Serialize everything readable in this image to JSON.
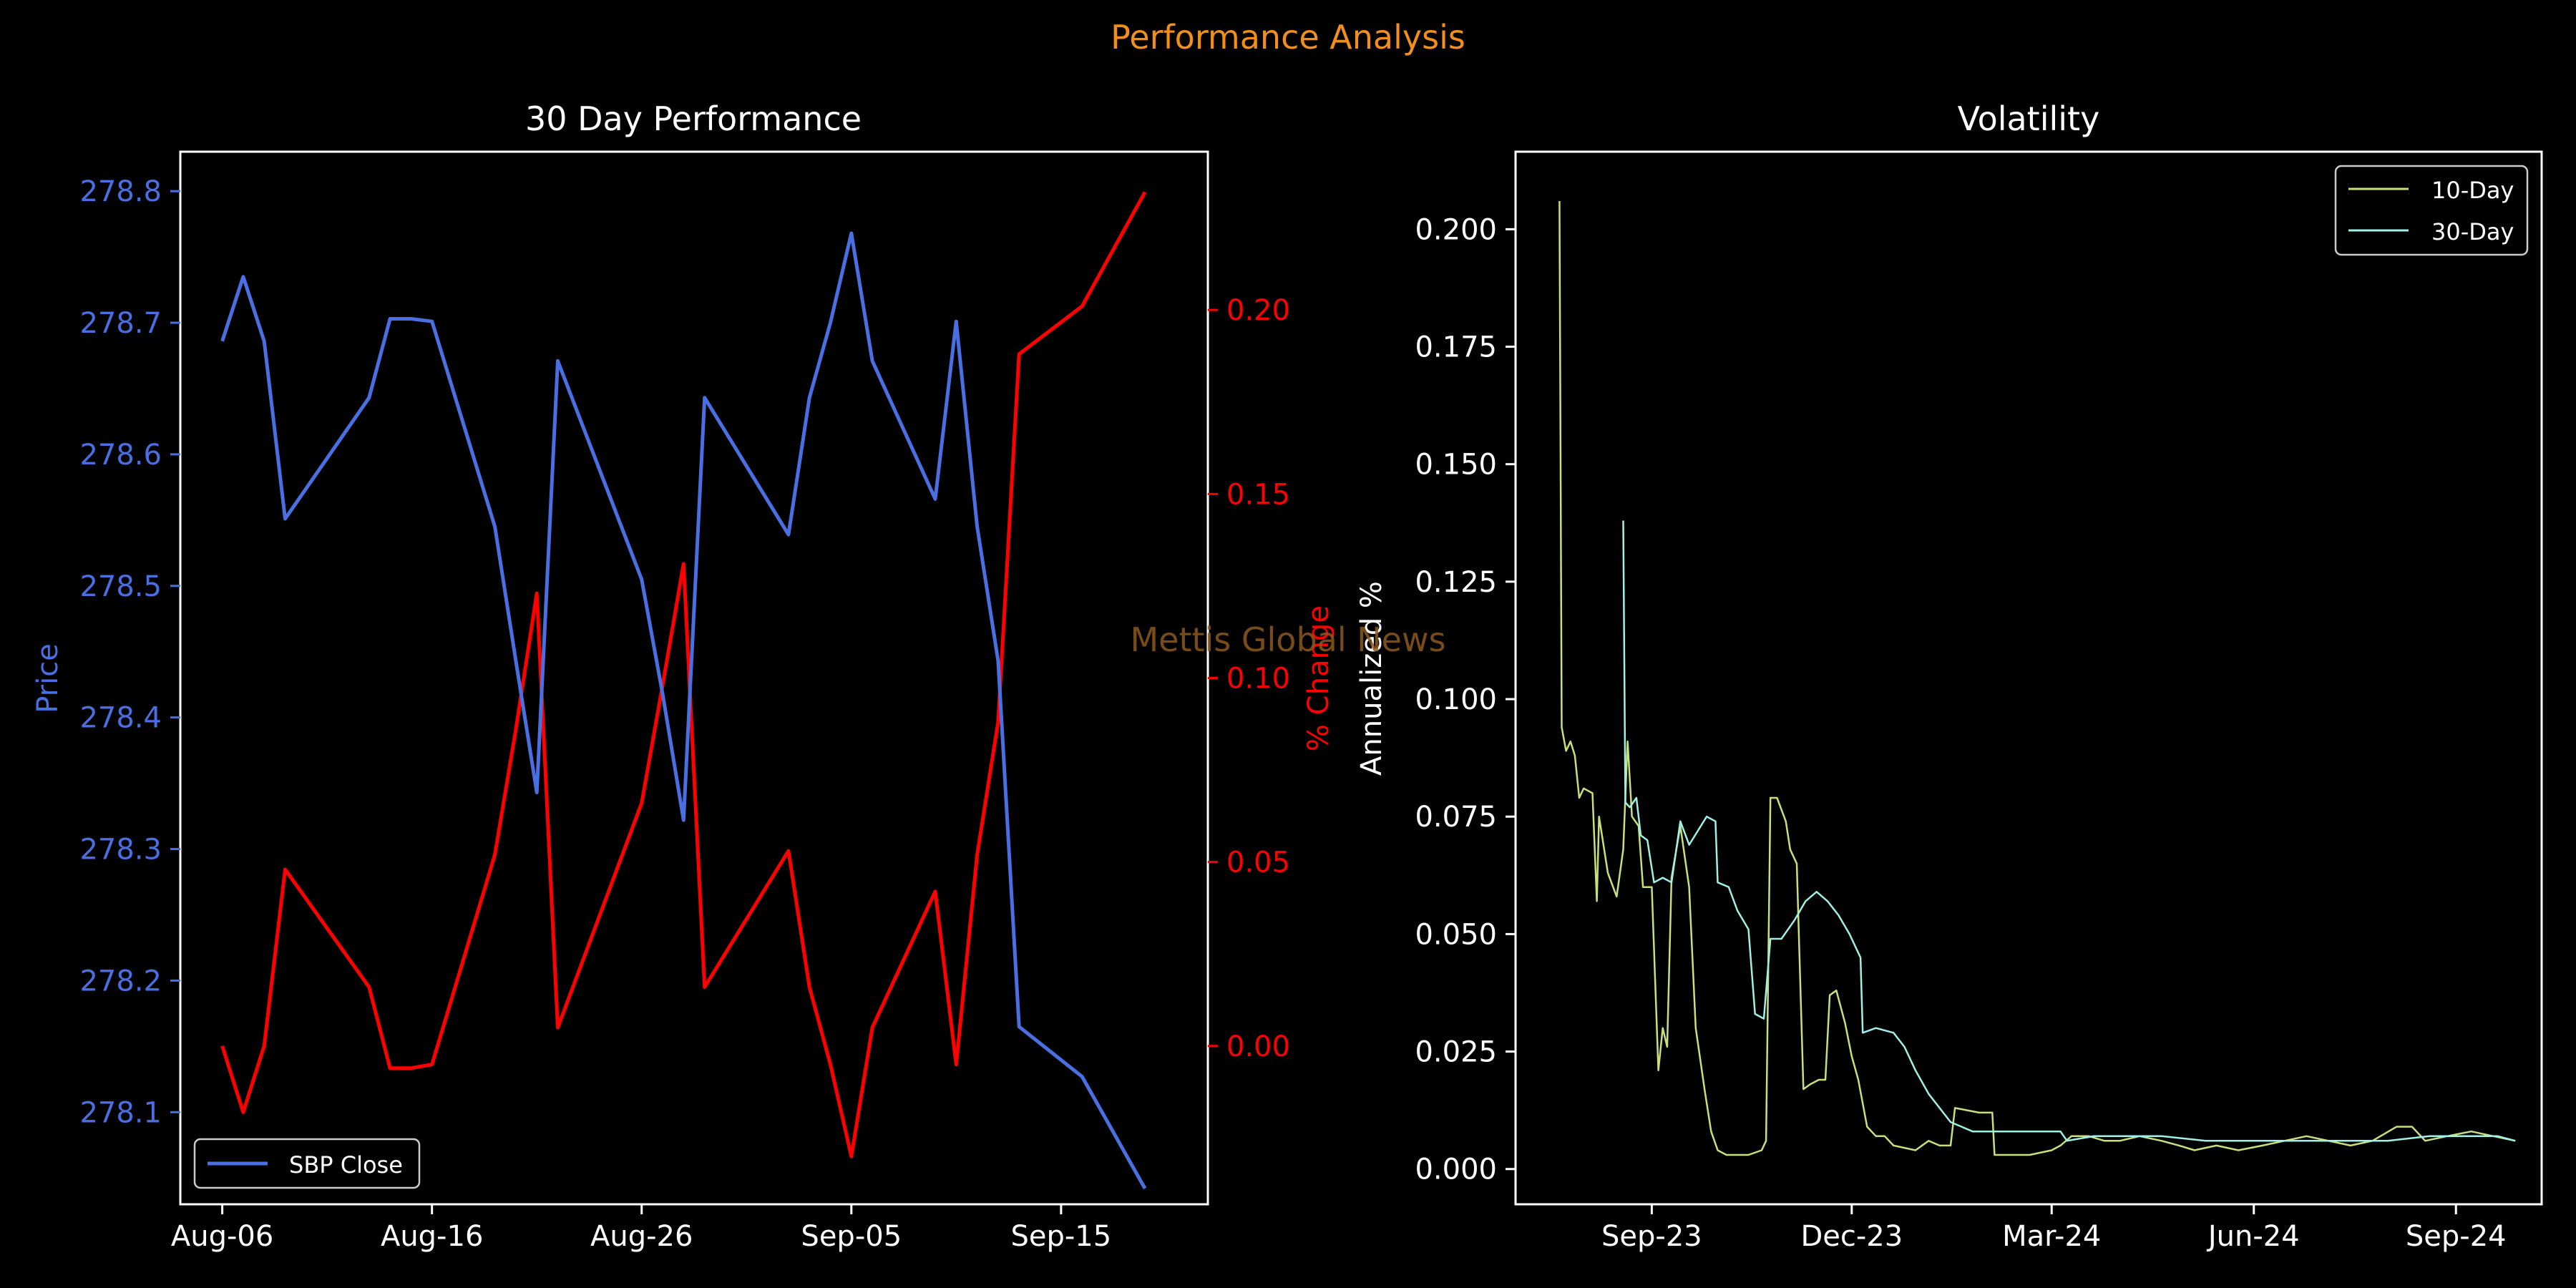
{
  "suptitle": "Performance Analysis",
  "watermark": "Mettis Global News",
  "colors": {
    "suptitle": "#f28e1c",
    "watermark": "#8c5a1e",
    "price": "#4a6fe3",
    "pct": "#ff0000",
    "vol10": "#c8e07a",
    "vol30": "#a0f0e6",
    "axes": "#ffffff",
    "background": "#000000"
  },
  "chart_data": [
    {
      "type": "line",
      "title": "30 Day Performance",
      "xlabel": "",
      "ylabel": "Price",
      "y2label": "% Change",
      "xlim": [
        "2024-08-04",
        "2024-09-22"
      ],
      "ylim": [
        278.03,
        278.83
      ],
      "y2lim": [
        -0.043,
        0.243
      ],
      "x_ticks": [
        "Aug-06",
        "Aug-16",
        "Aug-26",
        "Sep-05",
        "Sep-15"
      ],
      "x_tick_dates": [
        "2024-08-06",
        "2024-08-16",
        "2024-08-26",
        "2024-09-05",
        "2024-09-15"
      ],
      "y_ticks": [
        "278.1",
        "278.2",
        "278.3",
        "278.4",
        "278.5",
        "278.6",
        "278.7",
        "278.8"
      ],
      "y2_ticks": [
        "0.00",
        "0.05",
        "0.10",
        "0.15",
        "0.20"
      ],
      "legend": {
        "position": "lower-left",
        "entries": [
          "SBP Close"
        ]
      },
      "x": [
        "2024-08-06",
        "2024-08-07",
        "2024-08-08",
        "2024-08-09",
        "2024-08-13",
        "2024-08-14",
        "2024-08-15",
        "2024-08-16",
        "2024-08-19",
        "2024-08-20",
        "2024-08-21",
        "2024-08-22",
        "2024-08-26",
        "2024-08-27",
        "2024-08-28",
        "2024-08-29",
        "2024-09-02",
        "2024-09-03",
        "2024-09-04",
        "2024-09-05",
        "2024-09-06",
        "2024-09-09",
        "2024-09-10",
        "2024-09-11",
        "2024-09-12",
        "2024-09-13",
        "2024-09-16",
        "2024-09-19"
      ],
      "series": [
        {
          "name": "SBP Close",
          "axis": "left",
          "values": [
            278.686,
            278.735,
            278.686,
            278.551,
            278.643,
            278.703,
            278.703,
            278.701,
            278.545,
            278.443,
            278.343,
            278.671,
            278.505,
            278.418,
            278.322,
            278.643,
            278.539,
            278.643,
            278.7,
            278.768,
            278.671,
            278.566,
            278.701,
            278.545,
            278.443,
            278.165,
            278.127,
            278.042
          ]
        },
        {
          "axis": "right",
          "values": [
            0.0,
            -0.018,
            0.0,
            0.048,
            0.016,
            -0.006,
            -0.006,
            -0.005,
            0.052,
            0.086,
            0.123,
            0.005,
            0.066,
            0.098,
            0.131,
            0.016,
            0.053,
            0.016,
            -0.005,
            -0.03,
            0.005,
            0.042,
            -0.005,
            0.052,
            0.088,
            0.188,
            0.201,
            0.232
          ]
        }
      ]
    },
    {
      "type": "line",
      "title": "Volatility",
      "xlabel": "",
      "ylabel": "Annualized %",
      "xlim": [
        "2023-07-01",
        "2024-10-10"
      ],
      "ylim": [
        -0.0075,
        0.2165
      ],
      "x_ticks": [
        "Sep-23",
        "Dec-23",
        "Mar-24",
        "Jun-24",
        "Sep-24"
      ],
      "x_tick_dates": [
        "2023-09-01",
        "2023-12-01",
        "2024-03-01",
        "2024-06-01",
        "2024-09-01"
      ],
      "y_ticks": [
        "0.000",
        "0.025",
        "0.050",
        "0.075",
        "0.100",
        "0.125",
        "0.150",
        "0.175",
        "0.200"
      ],
      "legend": {
        "position": "top-right",
        "entries": [
          "10-Day",
          "30-Day"
        ]
      },
      "series": [
        {
          "name": "10-Day",
          "points": [
            [
              "2023-07-21",
              0.206
            ],
            [
              "2023-07-22",
              0.094
            ],
            [
              "2023-07-24",
              0.089
            ],
            [
              "2023-07-26",
              0.091
            ],
            [
              "2023-07-28",
              0.088
            ],
            [
              "2023-07-30",
              0.079
            ],
            [
              "2023-08-01",
              0.081
            ],
            [
              "2023-08-05",
              0.08
            ],
            [
              "2023-08-07",
              0.057
            ],
            [
              "2023-08-08",
              0.075
            ],
            [
              "2023-08-12",
              0.063
            ],
            [
              "2023-08-16",
              0.058
            ],
            [
              "2023-08-19",
              0.068
            ],
            [
              "2023-08-21",
              0.091
            ],
            [
              "2023-08-23",
              0.075
            ],
            [
              "2023-08-26",
              0.073
            ],
            [
              "2023-08-28",
              0.06
            ],
            [
              "2023-08-30",
              0.06
            ],
            [
              "2023-09-01",
              0.06
            ],
            [
              "2023-09-04",
              0.021
            ],
            [
              "2023-09-06",
              0.03
            ],
            [
              "2023-09-08",
              0.026
            ],
            [
              "2023-09-10",
              0.062
            ],
            [
              "2023-09-14",
              0.073
            ],
            [
              "2023-09-18",
              0.06
            ],
            [
              "2023-09-21",
              0.03
            ],
            [
              "2023-09-25",
              0.017
            ],
            [
              "2023-09-28",
              0.008
            ],
            [
              "2023-10-01",
              0.004
            ],
            [
              "2023-10-05",
              0.003
            ],
            [
              "2023-10-15",
              0.003
            ],
            [
              "2023-10-21",
              0.004
            ],
            [
              "2023-10-23",
              0.006
            ],
            [
              "2023-10-25",
              0.079
            ],
            [
              "2023-10-28",
              0.079
            ],
            [
              "2023-11-01",
              0.074
            ],
            [
              "2023-11-03",
              0.068
            ],
            [
              "2023-11-06",
              0.065
            ],
            [
              "2023-11-09",
              0.017
            ],
            [
              "2023-11-12",
              0.018
            ],
            [
              "2023-11-16",
              0.019
            ],
            [
              "2023-11-19",
              0.019
            ],
            [
              "2023-11-21",
              0.037
            ],
            [
              "2023-11-24",
              0.038
            ],
            [
              "2023-11-28",
              0.031
            ],
            [
              "2023-12-01",
              0.024
            ],
            [
              "2023-12-04",
              0.019
            ],
            [
              "2023-12-08",
              0.009
            ],
            [
              "2023-12-12",
              0.007
            ],
            [
              "2023-12-16",
              0.007
            ],
            [
              "2023-12-20",
              0.005
            ],
            [
              "2023-12-30",
              0.004
            ],
            [
              "2024-01-05",
              0.006
            ],
            [
              "2024-01-10",
              0.005
            ],
            [
              "2024-01-15",
              0.005
            ],
            [
              "2024-01-17",
              0.013
            ],
            [
              "2024-01-28",
              0.012
            ],
            [
              "2024-02-03",
              0.012
            ],
            [
              "2024-02-04",
              0.003
            ],
            [
              "2024-02-12",
              0.003
            ],
            [
              "2024-02-20",
              0.003
            ],
            [
              "2024-03-01",
              0.004
            ],
            [
              "2024-03-05",
              0.005
            ],
            [
              "2024-03-10",
              0.007
            ],
            [
              "2024-03-18",
              0.007
            ],
            [
              "2024-03-25",
              0.006
            ],
            [
              "2024-04-01",
              0.006
            ],
            [
              "2024-04-10",
              0.007
            ],
            [
              "2024-04-20",
              0.006
            ],
            [
              "2024-04-28",
              0.005
            ],
            [
              "2024-05-05",
              0.004
            ],
            [
              "2024-05-15",
              0.005
            ],
            [
              "2024-05-25",
              0.004
            ],
            [
              "2024-06-05",
              0.005
            ],
            [
              "2024-06-15",
              0.006
            ],
            [
              "2024-06-25",
              0.007
            ],
            [
              "2024-07-05",
              0.006
            ],
            [
              "2024-07-15",
              0.005
            ],
            [
              "2024-07-25",
              0.006
            ],
            [
              "2024-08-05",
              0.009
            ],
            [
              "2024-08-12",
              0.009
            ],
            [
              "2024-08-18",
              0.006
            ],
            [
              "2024-08-28",
              0.007
            ],
            [
              "2024-09-08",
              0.008
            ],
            [
              "2024-09-18",
              0.007
            ],
            [
              "2024-09-28",
              0.006
            ]
          ]
        },
        {
          "name": "30-Day",
          "points": [
            [
              "2023-08-19",
              0.138
            ],
            [
              "2023-08-20",
              0.078
            ],
            [
              "2023-08-22",
              0.077
            ],
            [
              "2023-08-25",
              0.079
            ],
            [
              "2023-08-27",
              0.071
            ],
            [
              "2023-08-30",
              0.07
            ],
            [
              "2023-09-02",
              0.061
            ],
            [
              "2023-09-06",
              0.062
            ],
            [
              "2023-09-10",
              0.061
            ],
            [
              "2023-09-14",
              0.074
            ],
            [
              "2023-09-18",
              0.069
            ],
            [
              "2023-09-22",
              0.072
            ],
            [
              "2023-09-26",
              0.075
            ],
            [
              "2023-09-30",
              0.074
            ],
            [
              "2023-10-01",
              0.061
            ],
            [
              "2023-10-06",
              0.06
            ],
            [
              "2023-10-10",
              0.055
            ],
            [
              "2023-10-15",
              0.051
            ],
            [
              "2023-10-18",
              0.033
            ],
            [
              "2023-10-22",
              0.032
            ],
            [
              "2023-10-25",
              0.049
            ],
            [
              "2023-10-30",
              0.049
            ],
            [
              "2023-11-05",
              0.053
            ],
            [
              "2023-11-10",
              0.057
            ],
            [
              "2023-11-15",
              0.059
            ],
            [
              "2023-11-20",
              0.057
            ],
            [
              "2023-11-25",
              0.054
            ],
            [
              "2023-11-30",
              0.05
            ],
            [
              "2023-12-05",
              0.045
            ],
            [
              "2023-12-06",
              0.029
            ],
            [
              "2023-12-12",
              0.03
            ],
            [
              "2023-12-20",
              0.029
            ],
            [
              "2023-12-25",
              0.026
            ],
            [
              "2023-12-30",
              0.021
            ],
            [
              "2024-01-05",
              0.016
            ],
            [
              "2024-01-10",
              0.013
            ],
            [
              "2024-01-15",
              0.01
            ],
            [
              "2024-01-20",
              0.009
            ],
            [
              "2024-01-25",
              0.008
            ],
            [
              "2024-02-05",
              0.008
            ],
            [
              "2024-02-20",
              0.008
            ],
            [
              "2024-03-05",
              0.008
            ],
            [
              "2024-03-08",
              0.006
            ],
            [
              "2024-03-20",
              0.007
            ],
            [
              "2024-04-01",
              0.007
            ],
            [
              "2024-04-20",
              0.007
            ],
            [
              "2024-05-10",
              0.006
            ],
            [
              "2024-06-01",
              0.006
            ],
            [
              "2024-06-20",
              0.006
            ],
            [
              "2024-07-10",
              0.006
            ],
            [
              "2024-08-01",
              0.006
            ],
            [
              "2024-08-20",
              0.007
            ],
            [
              "2024-09-10",
              0.007
            ],
            [
              "2024-09-20",
              0.007
            ],
            [
              "2024-09-28",
              0.006
            ]
          ]
        }
      ]
    }
  ]
}
